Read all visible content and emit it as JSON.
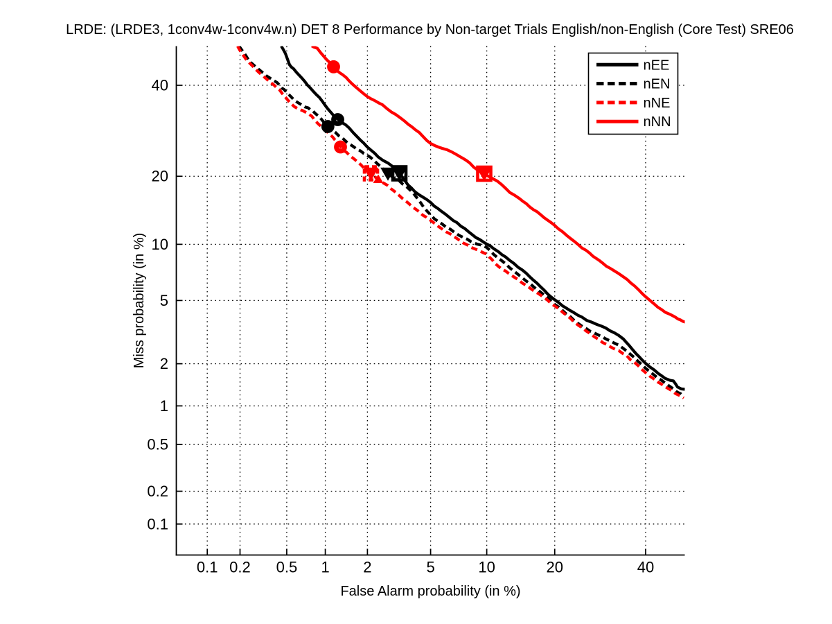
{
  "figure": {
    "background": "#ffffff"
  },
  "chart_data": {
    "type": "line",
    "chart_kind": "DET curve (Detection Error Tradeoff)",
    "axis_scale": "normal-deviate (probit) on both axes",
    "title": "LRDE: (LRDE3, 1conv4w-1conv4w.n) DET 8 Performance by Non-target Trials English/non-English (Core Test) SRE06",
    "xlabel": "False Alarm probability (in %)",
    "ylabel": "Miss probability (in %)",
    "xlim_percent": [
      0.05,
      50
    ],
    "ylim_percent": [
      0.05,
      50
    ],
    "x_tick_labels": [
      "0.1",
      "0.2",
      "0.5",
      "1",
      "2",
      "5",
      "10",
      "20",
      "40"
    ],
    "y_tick_labels": [
      "0.1",
      "0.2",
      "0.5",
      "1",
      "2",
      "5",
      "10",
      "20",
      "40"
    ],
    "grid": "dotted",
    "grid_color": "#000000",
    "axis_color": "#000000",
    "legend": {
      "position": "top-right-inside",
      "border_color": "#000000",
      "background": "#ffffff"
    },
    "series": [
      {
        "name": "nEE",
        "color": "#000000",
        "line_style": "solid",
        "points_fa_miss_percent": [
          [
            0.451,
            50.0
          ],
          [
            0.4877,
            48.1228
          ],
          [
            0.5271,
            45.2717
          ],
          [
            0.5693,
            44.0312
          ],
          [
            0.6628,
            41.7436
          ],
          [
            0.7696,
            39.3111
          ],
          [
            0.9021,
            36.9197
          ],
          [
            1.0417,
            34.2478
          ],
          [
            1.2353,
            31.7324
          ],
          [
            1.4103,
            30.544
          ],
          [
            1.5972,
            28.8378
          ],
          [
            1.9918,
            25.7547
          ],
          [
            2.3644,
            23.7294
          ],
          [
            2.7369,
            22.4473
          ],
          [
            3.2375,
            20.5361
          ],
          [
            3.8486,
            17.8811
          ],
          [
            4.9959,
            15.5387
          ],
          [
            6.3896,
            13.3987
          ],
          [
            8.4022,
            11.2034
          ],
          [
            9.9977,
            10.0135
          ],
          [
            11.4357,
            9.1522
          ],
          [
            15.2833,
            7.0422
          ],
          [
            20.0047,
            5.0563
          ],
          [
            25.2795,
            3.9623
          ],
          [
            31.3341,
            3.3063
          ],
          [
            34.5779,
            2.8901
          ],
          [
            40.0023,
            2.0135
          ],
          [
            44.9168,
            1.5972
          ],
          [
            47.0518,
            1.5098
          ],
          [
            48.1228,
            1.3784
          ],
          [
            50.0,
            1.3241
          ]
        ],
        "markers": [
          {
            "shape": "circle",
            "filled": false,
            "fa_percent": 1.2353,
            "miss_percent": 31.7324
          },
          {
            "shape": "square",
            "filled": false,
            "fa_percent": 3.2375,
            "miss_percent": 20.5361
          },
          {
            "shape": "triangle-down",
            "filled": true,
            "fa_percent": 3.2375,
            "miss_percent": 20.4978
          }
        ]
      },
      {
        "name": "nEN",
        "color": "#000000",
        "line_style": "dashed",
        "points_fa_miss_percent": [
          [
            0.1958,
            50.0
          ],
          [
            0.2163,
            48.3015
          ],
          [
            0.242,
            46.1608
          ],
          [
            0.278,
            44.5622
          ],
          [
            0.3187,
            42.9724
          ],
          [
            0.3648,
            41.7436
          ],
          [
            0.4167,
            40.6097
          ],
          [
            0.4569,
            39.3111
          ],
          [
            0.5005,
            38.2807
          ],
          [
            0.5693,
            36.5819
          ],
          [
            0.6463,
            35.2414
          ],
          [
            0.7415,
            34.4127
          ],
          [
            0.8084,
            33.5914
          ],
          [
            0.8912,
            32.4547
          ],
          [
            1.0454,
            30.1523
          ],
          [
            1.1859,
            28.8378
          ],
          [
            1.4265,
            26.8813
          ],
          [
            1.689,
            25.3512
          ],
          [
            1.9918,
            24.0073
          ],
          [
            2.3395,
            22.3668
          ],
          [
            2.7369,
            20.5361
          ],
          [
            3.2213,
            19.1621
          ],
          [
            3.8486,
            17.3819
          ],
          [
            4.9959,
            13.7208
          ],
          [
            6.4572,
            11.7861
          ],
          [
            8.3333,
            10.3482
          ],
          [
            9.9977,
            9.656
          ],
          [
            11.4357,
            8.4577
          ],
          [
            15.2833,
            6.4572
          ],
          [
            20.0047,
            4.7647
          ],
          [
            25.2795,
            3.5235
          ],
          [
            31.3341,
            2.8228
          ],
          [
            34.5779,
            2.5317
          ],
          [
            40.0023,
            1.8656
          ],
          [
            44.9168,
            1.476
          ],
          [
            49.5529,
            1.1859
          ]
        ],
        "markers": [
          {
            "shape": "circle",
            "filled": true,
            "fa_percent": 1.0454,
            "miss_percent": 30.1523
          },
          {
            "shape": "triangle-down",
            "filled": true,
            "fa_percent": 2.7369,
            "miss_percent": 20.4978
          }
        ]
      },
      {
        "name": "nNE",
        "color": "#ff0000",
        "line_style": "dashed",
        "points_fa_miss_percent": [
          [
            0.1903,
            50.0
          ],
          [
            0.2102,
            47.9442
          ],
          [
            0.242,
            45.6271
          ],
          [
            0.278,
            43.8544
          ],
          [
            0.3187,
            42.2693
          ],
          [
            0.3648,
            40.6966
          ],
          [
            0.4167,
            39.3111
          ],
          [
            0.4569,
            38.1097
          ],
          [
            0.5005,
            36.5819
          ],
          [
            0.5766,
            34.7433
          ],
          [
            0.6711,
            33.919
          ],
          [
            0.7888,
            32.6161
          ],
          [
            0.8805,
            30.7013
          ],
          [
            1.0051,
            29.2987
          ],
          [
            1.1316,
            27.7759
          ],
          [
            1.2939,
            25.7113
          ],
          [
            1.5098,
            24.0073
          ],
          [
            1.805,
            22.0997
          ],
          [
            2.1138,
            20.4978
          ],
          [
            2.3644,
            19.4693
          ],
          [
            2.7369,
            18.3178
          ],
          [
            3.3528,
            16.3659
          ],
          [
            4.0786,
            14.5544
          ],
          [
            4.9959,
            12.9394
          ],
          [
            6.4572,
            11.1778
          ],
          [
            8.3333,
            9.6406
          ],
          [
            9.9977,
            8.8969
          ],
          [
            11.4357,
            7.7059
          ],
          [
            15.2833,
            6.0707
          ],
          [
            20.0047,
            4.6545
          ],
          [
            25.2795,
            3.4203
          ],
          [
            31.3341,
            2.5986
          ],
          [
            34.5779,
            2.337
          ],
          [
            40.0023,
            1.7423
          ],
          [
            44.9168,
            1.3784
          ],
          [
            49.7317,
            1.145
          ]
        ],
        "markers": [
          {
            "shape": "circle",
            "filled": false,
            "fa_percent": 1.2939,
            "miss_percent": 25.7113
          },
          {
            "shape": "square",
            "filled": false,
            "edge_style": "dashed",
            "fa_percent": 2.1138,
            "miss_percent": 20.5361
          },
          {
            "shape": "triangle-down",
            "filled": true,
            "fa_percent": 2.1138,
            "miss_percent": 20.4978
          },
          {
            "shape": "triangle-up",
            "filled": true,
            "fa_percent": 2.3644,
            "miss_percent": 19.4693
          }
        ]
      },
      {
        "name": "nNN",
        "color": "#ff0000",
        "line_style": "solid",
        "points_fa_miss_percent": [
          [
            0.7888,
            50.0
          ],
          [
            0.8698,
            49.3741
          ],
          [
            0.9755,
            47.355
          ],
          [
            1.0667,
            45.8049
          ],
          [
            1.1517,
            44.6862
          ],
          [
            1.2717,
            43.1485
          ],
          [
            1.4265,
            41.8311
          ],
          [
            1.6426,
            39.6563
          ],
          [
            1.9918,
            37.2585
          ],
          [
            2.5185,
            35.1582
          ],
          [
            2.8813,
            33.5914
          ],
          [
            3.5026,
            31.3341
          ],
          [
            4.0786,
            29.453
          ],
          [
            4.9959,
            26.5422
          ],
          [
            5.8059,
            25.4949
          ],
          [
            6.5711,
            24.5966
          ],
          [
            7.2873,
            23.7294
          ],
          [
            7.8626,
            23.0425
          ],
          [
            8.6116,
            21.7026
          ],
          [
            9.7175,
            20.4724
          ],
          [
            10.7573,
            19.5311
          ],
          [
            11.7861,
            18.5567
          ],
          [
            12.8828,
            17.267
          ],
          [
            14.2492,
            16.1455
          ],
          [
            16.3659,
            14.5544
          ],
          [
            18.6768,
            13.0722
          ],
          [
            20.6638,
            11.8749
          ],
          [
            23.0425,
            10.6745
          ],
          [
            25.2795,
            9.6406
          ],
          [
            27.6258,
            8.7534
          ],
          [
            29.7629,
            7.995
          ],
          [
            32.2936,
            7.3496
          ],
          [
            34.5779,
            6.8035
          ],
          [
            37.2585,
            6.017
          ],
          [
            40.0023,
            5.2264
          ],
          [
            42.0939,
            4.7914
          ],
          [
            44.0312,
            4.4025
          ],
          [
            45.8049,
            4.1577
          ],
          [
            47.5871,
            3.9623
          ],
          [
            48.8377,
            3.8113
          ],
          [
            50.0894,
            3.7194
          ]
        ],
        "markers": [
          {
            "shape": "circle",
            "filled": true,
            "fa_percent": 1.1517,
            "miss_percent": 44.6862
          },
          {
            "shape": "square",
            "filled": false,
            "fa_percent": 9.7175,
            "miss_percent": 20.4724
          },
          {
            "shape": "triangle-down",
            "filled": true,
            "fa_percent": 9.7175,
            "miss_percent": 20.4342
          }
        ]
      }
    ]
  }
}
